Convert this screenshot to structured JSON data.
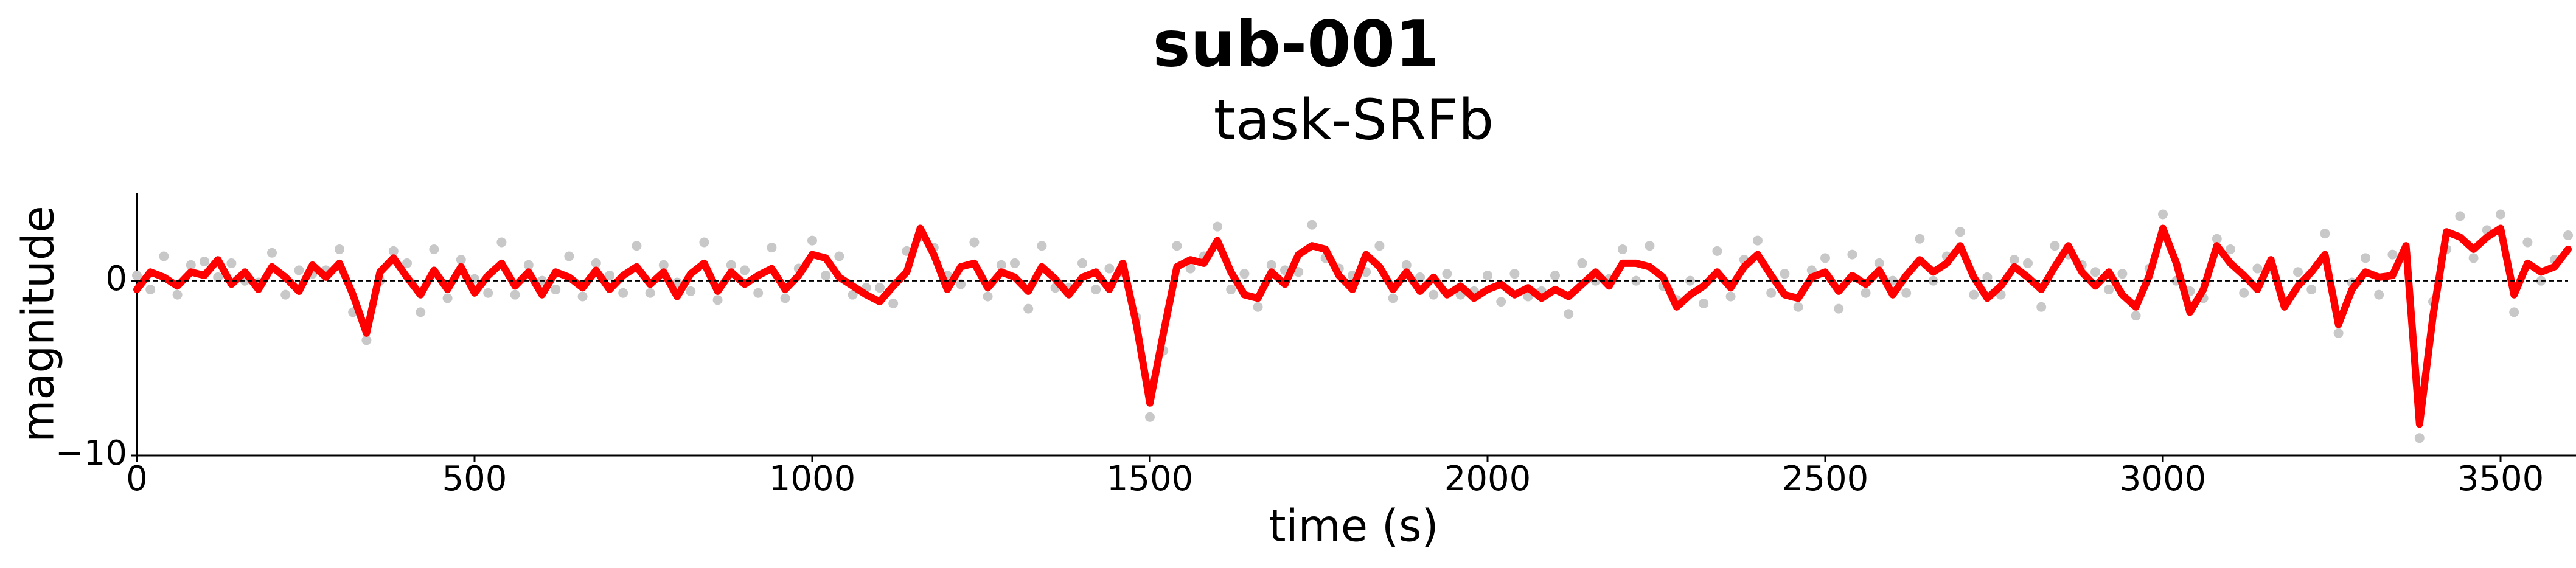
{
  "chart_data": {
    "type": "line",
    "title": "sub-001",
    "subtitle": "task-SRFb",
    "xlabel": "time (s)",
    "ylabel": "magnitude",
    "xlim": [
      0,
      3600
    ],
    "xticks": [
      0,
      500,
      1000,
      1500,
      2000,
      2500,
      3000,
      3500
    ],
    "ylim": [
      -10,
      5
    ],
    "yticks": [
      {
        "value": -10,
        "label": "−10"
      },
      0
    ],
    "hline": 0,
    "x": [
      0,
      20,
      40,
      60,
      80,
      100,
      120,
      140,
      160,
      180,
      200,
      220,
      240,
      260,
      280,
      300,
      320,
      340,
      360,
      380,
      400,
      420,
      440,
      460,
      480,
      500,
      520,
      540,
      560,
      580,
      600,
      620,
      640,
      660,
      680,
      700,
      720,
      740,
      760,
      780,
      800,
      820,
      840,
      860,
      880,
      900,
      920,
      940,
      960,
      980,
      1000,
      1020,
      1040,
      1060,
      1080,
      1100,
      1120,
      1140,
      1160,
      1180,
      1200,
      1220,
      1240,
      1260,
      1280,
      1300,
      1320,
      1340,
      1360,
      1380,
      1400,
      1420,
      1440,
      1460,
      1480,
      1500,
      1520,
      1540,
      1560,
      1580,
      1600,
      1620,
      1640,
      1660,
      1680,
      1700,
      1720,
      1740,
      1760,
      1780,
      1800,
      1820,
      1840,
      1860,
      1880,
      1900,
      1920,
      1940,
      1960,
      1980,
      2000,
      2020,
      2040,
      2060,
      2080,
      2100,
      2120,
      2140,
      2160,
      2180,
      2200,
      2220,
      2240,
      2260,
      2280,
      2300,
      2320,
      2340,
      2360,
      2380,
      2400,
      2420,
      2440,
      2460,
      2480,
      2500,
      2520,
      2540,
      2560,
      2580,
      2600,
      2620,
      2640,
      2660,
      2680,
      2700,
      2720,
      2740,
      2760,
      2780,
      2800,
      2820,
      2840,
      2860,
      2880,
      2900,
      2920,
      2940,
      2960,
      2980,
      3000,
      3020,
      3040,
      3060,
      3080,
      3100,
      3120,
      3140,
      3160,
      3180,
      3200,
      3220,
      3240,
      3260,
      3280,
      3300,
      3320,
      3340,
      3360,
      3380,
      3400,
      3420,
      3440,
      3460,
      3480,
      3500,
      3520,
      3540,
      3560,
      3580,
      3600
    ],
    "series": [
      {
        "type": "scatter",
        "color": "#c8c8c8",
        "values": [
          0.3,
          -0.5,
          1.4,
          -0.8,
          0.9,
          1.1,
          0.2,
          1.0,
          0,
          -0.1,
          1.6,
          -0.8,
          0.6,
          0.4,
          0.6,
          1.8,
          -1.8,
          -3.4,
          0,
          1.7,
          1.0,
          -1.8,
          1.8,
          -1.0,
          1.2,
          0.1,
          -0.7,
          2.2,
          -0.8,
          0.9,
          0,
          -0.5,
          1.4,
          -0.9,
          1.0,
          0.3,
          -0.7,
          2.0,
          -0.7,
          0.9,
          -0.1,
          -0.6,
          2.2,
          -1.1,
          0.9,
          0.6,
          -0.7,
          1.9,
          -1.0,
          0.7,
          2.3,
          0.3,
          1.4,
          -0.8,
          -0.4,
          -0.4,
          -1.3,
          1.7,
          2.5,
          1.9,
          0.3,
          -0.2,
          2.2,
          -0.9,
          0.9,
          1.0,
          -1.6,
          2.0,
          -0.4,
          -0.4,
          1.0,
          -0.5,
          0.7,
          0.5,
          -2.1,
          -7.8,
          -4.0,
          2.0,
          0.7,
          1.4,
          3.1,
          -0.5,
          0.4,
          -1.5,
          0.9,
          0.6,
          0.5,
          3.2,
          1.3,
          0.7,
          0.3,
          0.5,
          2.0,
          -1.0,
          0.9,
          0.2,
          -0.8,
          0.4,
          -0.8,
          -0.6,
          0.3,
          -1.2,
          0.4,
          -0.9,
          -0.6,
          0.3,
          -1.9,
          1.0,
          0,
          0.1,
          1.8,
          0,
          2.0,
          -0.3,
          -1.1,
          0,
          -1.3,
          1.7,
          -0.9,
          1.2,
          2.3,
          -0.7,
          0.4,
          -1.5,
          0.6,
          1.3,
          -1.6,
          1.5,
          -0.7,
          1.0,
          0,
          -0.7,
          2.4,
          0,
          1.4,
          2.8,
          -0.8,
          0.2,
          -0.8,
          1.2,
          1.0,
          -1.5,
          2.0,
          1.5,
          0.9,
          0.5,
          -0.5,
          0.4,
          -2.0,
          0.7,
          3.8,
          0,
          -0.6,
          -1.0,
          2.4,
          1.8,
          -0.7,
          0.7,
          0.7,
          -1.1,
          0.5,
          -0.5,
          2.7,
          -3.0,
          -0.1,
          1.3,
          -0.8,
          1.5,
          1.5,
          -9.0,
          -1.2,
          1.8,
          3.7,
          1.3,
          2.9,
          3.8,
          -1.8,
          2.2,
          0,
          1.2,
          2.6
        ]
      },
      {
        "type": "line",
        "color": "#ff0000",
        "values": [
          -0.5,
          0.5,
          0.2,
          -0.3,
          0.5,
          0.3,
          1.2,
          -0.2,
          0.5,
          -0.5,
          0.8,
          0.2,
          -0.6,
          0.9,
          0.2,
          1.0,
          -0.8,
          -3.0,
          0.5,
          1.3,
          0.2,
          -0.8,
          0.6,
          -0.5,
          0.8,
          -0.7,
          0.3,
          1.0,
          -0.3,
          0.5,
          -0.8,
          0.5,
          0.2,
          -0.4,
          0.6,
          -0.5,
          0.3,
          0.8,
          -0.2,
          0.5,
          -0.9,
          0.4,
          1.0,
          -0.6,
          0.5,
          -0.2,
          0.3,
          0.7,
          -0.5,
          0.3,
          1.5,
          1.3,
          0.2,
          -0.3,
          -0.8,
          -1.2,
          -0.3,
          0.5,
          3.0,
          1.5,
          -0.5,
          0.8,
          1.0,
          -0.4,
          0.5,
          0.2,
          -0.6,
          0.8,
          0.1,
          -0.8,
          0.2,
          0.5,
          -0.5,
          1.0,
          -2.5,
          -7.0,
          -3.0,
          0.8,
          1.2,
          1.0,
          2.3,
          0.5,
          -0.8,
          -1.0,
          0.5,
          -0.2,
          1.5,
          2.0,
          1.8,
          0.3,
          -0.5,
          1.5,
          0.8,
          -0.5,
          0.5,
          -0.6,
          0.2,
          -0.8,
          -0.3,
          -1.0,
          -0.5,
          -0.2,
          -0.8,
          -0.4,
          -1.0,
          -0.5,
          -0.9,
          -0.2,
          0.5,
          -0.3,
          1.0,
          1.0,
          0.8,
          0.2,
          -1.5,
          -0.8,
          -0.3,
          0.5,
          -0.4,
          0.8,
          1.5,
          0.3,
          -0.8,
          -1.0,
          0.2,
          0.5,
          -0.6,
          0.3,
          -0.2,
          0.6,
          -0.8,
          0.3,
          1.2,
          0.5,
          1.0,
          2.0,
          0.2,
          -1.0,
          -0.3,
          0.8,
          0.2,
          -0.5,
          0.8,
          2.0,
          0.5,
          -0.3,
          0.5,
          -0.8,
          -1.5,
          0.3,
          3.0,
          1.0,
          -1.8,
          -0.5,
          2.0,
          1.0,
          0.3,
          -0.5,
          1.2,
          -1.5,
          -0.3,
          0.5,
          1.5,
          -2.5,
          -0.5,
          0.5,
          0.2,
          0.3,
          2.0,
          -8.2,
          -2.0,
          2.8,
          2.5,
          1.8,
          2.5,
          3.0,
          -0.8,
          1.0,
          0.5,
          0.8,
          1.8
        ]
      }
    ]
  }
}
